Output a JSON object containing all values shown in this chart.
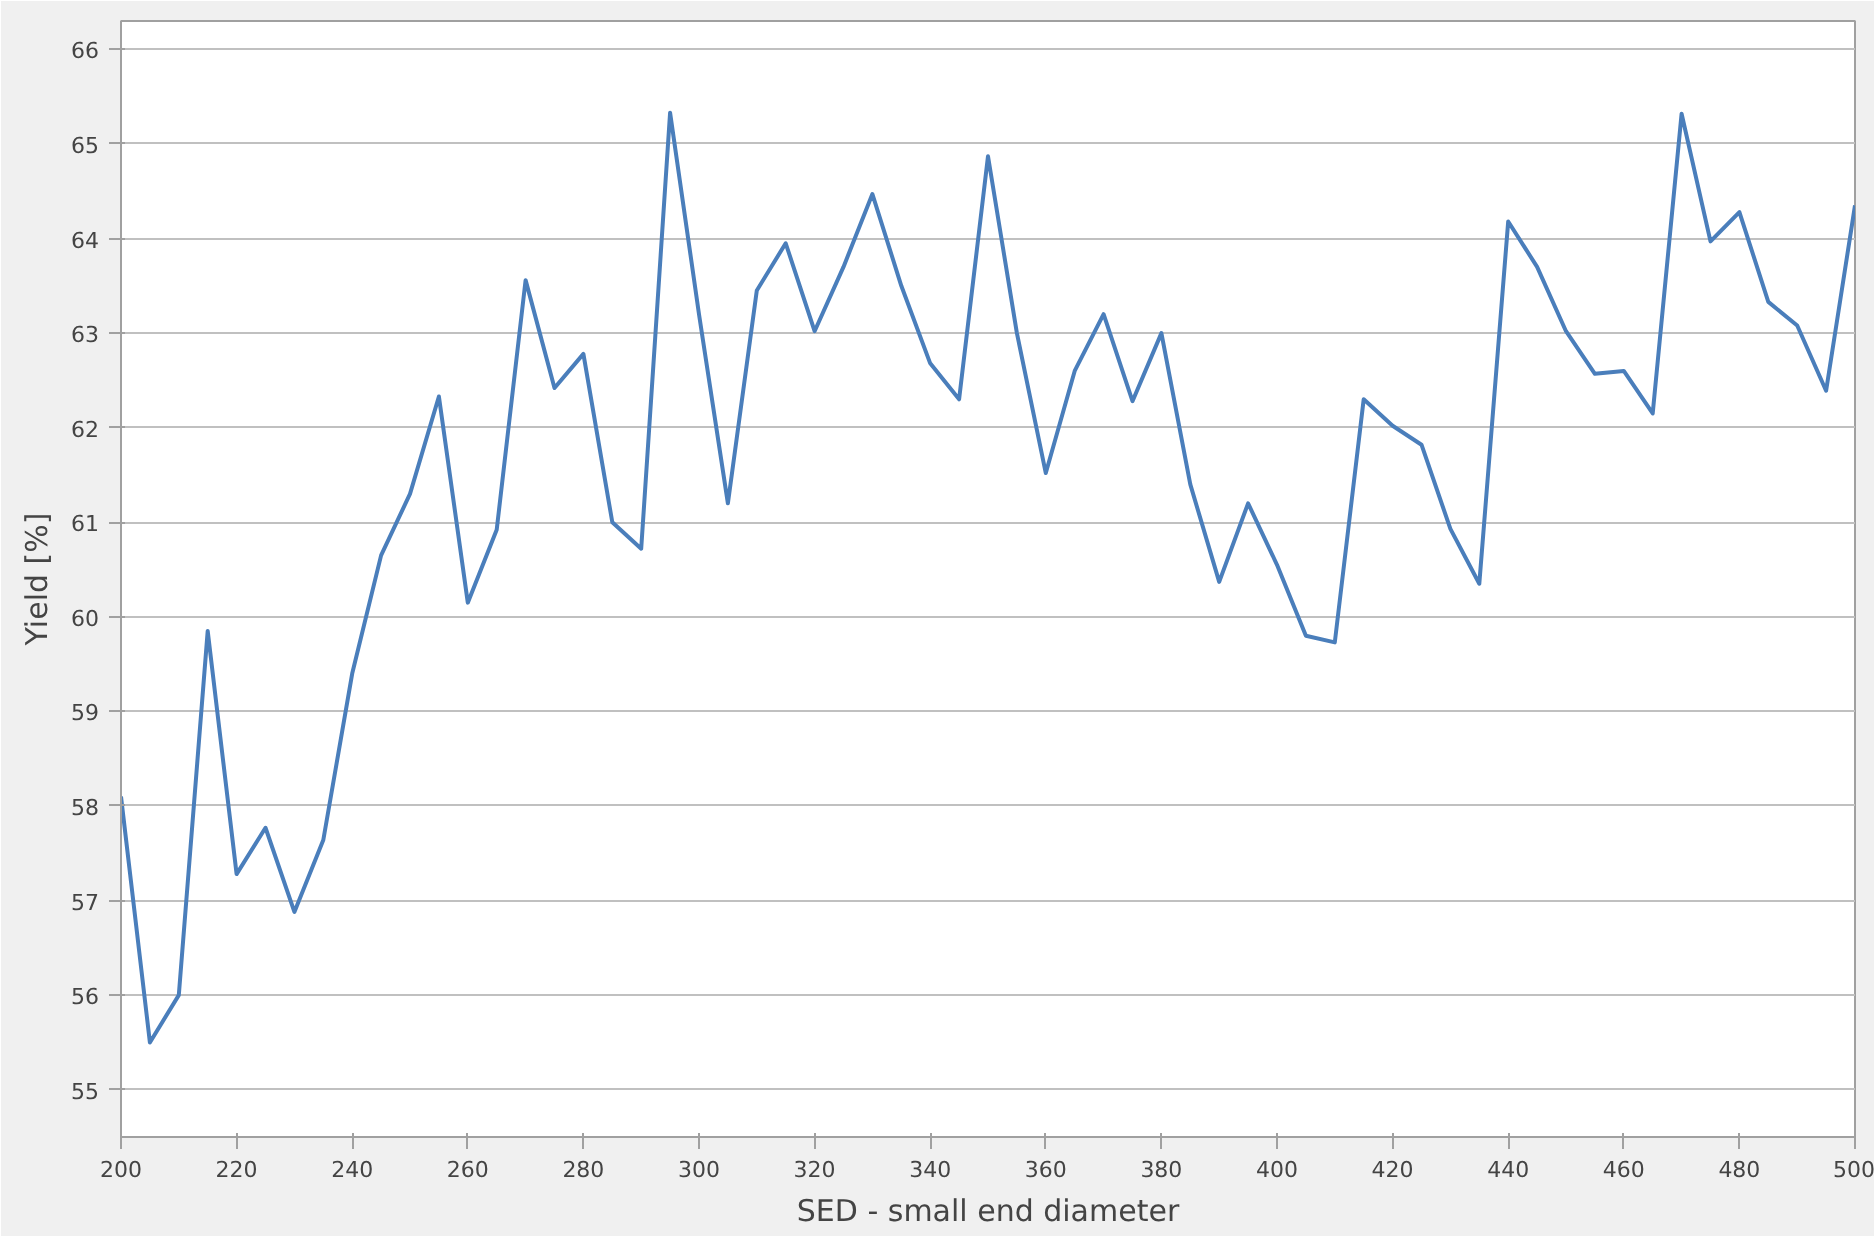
{
  "chart_data": {
    "type": "line",
    "xlabel": "SED - small end diameter",
    "ylabel": "Yield [%]",
    "x": [
      200,
      205,
      210,
      215,
      220,
      225,
      230,
      235,
      240,
      245,
      250,
      255,
      260,
      265,
      270,
      275,
      280,
      285,
      290,
      295,
      300,
      305,
      310,
      315,
      320,
      325,
      330,
      335,
      340,
      345,
      350,
      355,
      360,
      365,
      370,
      375,
      380,
      385,
      390,
      395,
      400,
      405,
      410,
      415,
      420,
      425,
      430,
      435,
      440,
      445,
      450,
      455,
      460,
      465,
      470,
      475,
      480,
      485,
      490,
      495,
      500
    ],
    "series": [
      {
        "color": "#4a7ebb",
        "values": [
          58.1,
          55.5,
          56.0,
          59.85,
          57.28,
          57.77,
          56.88,
          57.64,
          59.4,
          60.65,
          61.3,
          62.33,
          60.15,
          60.92,
          63.56,
          62.42,
          62.78,
          61.0,
          60.72,
          65.33,
          63.2,
          61.2,
          63.45,
          63.95,
          63.02,
          63.7,
          64.47,
          63.5,
          62.68,
          62.3,
          64.87,
          63.0,
          61.52,
          62.6,
          63.2,
          62.28,
          63.0,
          61.4,
          60.37,
          61.2,
          60.55,
          59.8,
          59.73,
          62.3,
          62.02,
          61.82,
          60.93,
          60.35,
          64.18,
          63.7,
          63.02,
          62.57,
          62.6,
          62.15,
          65.32,
          63.97,
          64.28,
          63.33,
          63.08,
          62.39,
          64.35
        ]
      }
    ],
    "xlim": [
      200,
      500
    ],
    "ylim": [
      54.5,
      66.3
    ],
    "xticks": [
      200,
      220,
      240,
      260,
      280,
      300,
      320,
      340,
      360,
      380,
      400,
      420,
      440,
      460,
      480,
      500
    ],
    "yticks": [
      55,
      56,
      57,
      58,
      59,
      60,
      61,
      62,
      63,
      64,
      65,
      66
    ],
    "grid": "y",
    "marker": "none",
    "line_style": "solid"
  }
}
